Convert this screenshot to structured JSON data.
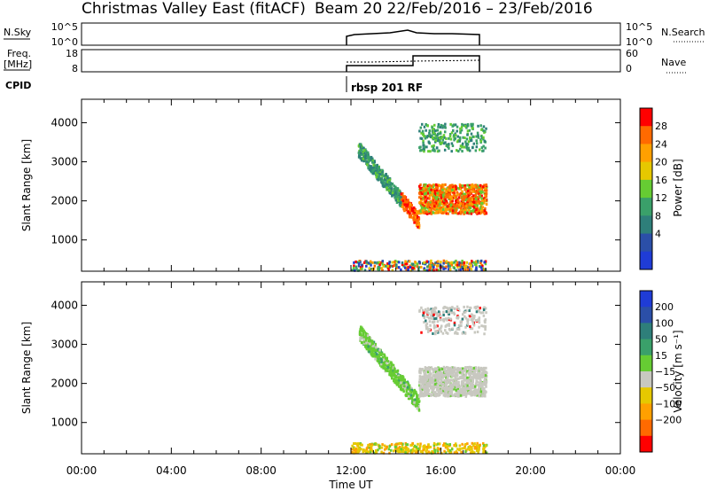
{
  "header": {
    "title_left": "Christmas Valley East (fitACF)",
    "title_right": "Beam 20  22/Feb/2016 – 23/Feb/2016"
  },
  "panels": {
    "nsky": {
      "label": "N.Sky",
      "left_ticks": [
        "10^5",
        "10^0"
      ],
      "right_ticks": [
        "10^5",
        "10^0"
      ],
      "right_label": "N.Search"
    },
    "freq": {
      "label_line1": "Freq.",
      "label_line2": "[MHz]",
      "left_ticks": [
        "18",
        "8"
      ],
      "right_ticks": [
        "60",
        "0"
      ],
      "right_label": "Nave"
    },
    "cpid": {
      "label": "CPID",
      "value": "rbsp 201 RF"
    }
  },
  "chart_data": [
    {
      "type": "heatmap",
      "name": "power",
      "ylabel": "Slant Range [km]",
      "yticks": [
        1000,
        2000,
        3000,
        4000
      ],
      "ylim": [
        200,
        4600
      ],
      "colorbar": {
        "label": "Power [dB]",
        "ticks": [
          "28",
          "24",
          "20",
          "16",
          "12",
          "8",
          "4"
        ],
        "colors": [
          "#ff0000",
          "#ff6a00",
          "#ffa000",
          "#e6c800",
          "#66cc33",
          "#3aa06a",
          "#2e7f7a",
          "#2b4fa8",
          "#1f3cd6"
        ]
      }
    },
    {
      "type": "heatmap",
      "name": "velocity",
      "ylabel": "Slant Range [km]",
      "yticks": [
        1000,
        2000,
        3000,
        4000
      ],
      "ylim": [
        200,
        4600
      ],
      "colorbar": {
        "label": "Velocity [m s⁻¹]",
        "ticks": [
          "200",
          "100",
          "50",
          "15",
          "−15",
          "−50",
          "−100",
          "−200"
        ],
        "colors": [
          "#1f3cd6",
          "#2b4fa8",
          "#2e7f7a",
          "#3aa06a",
          "#66cc33",
          "#c8c8c0",
          "#e6c800",
          "#ffa000",
          "#ff6a00",
          "#ff0000"
        ]
      }
    }
  ],
  "xaxis": {
    "label": "Time UT",
    "ticks": [
      "00:00",
      "04:00",
      "08:00",
      "12:00",
      "16:00",
      "20:00",
      "00:00"
    ]
  }
}
